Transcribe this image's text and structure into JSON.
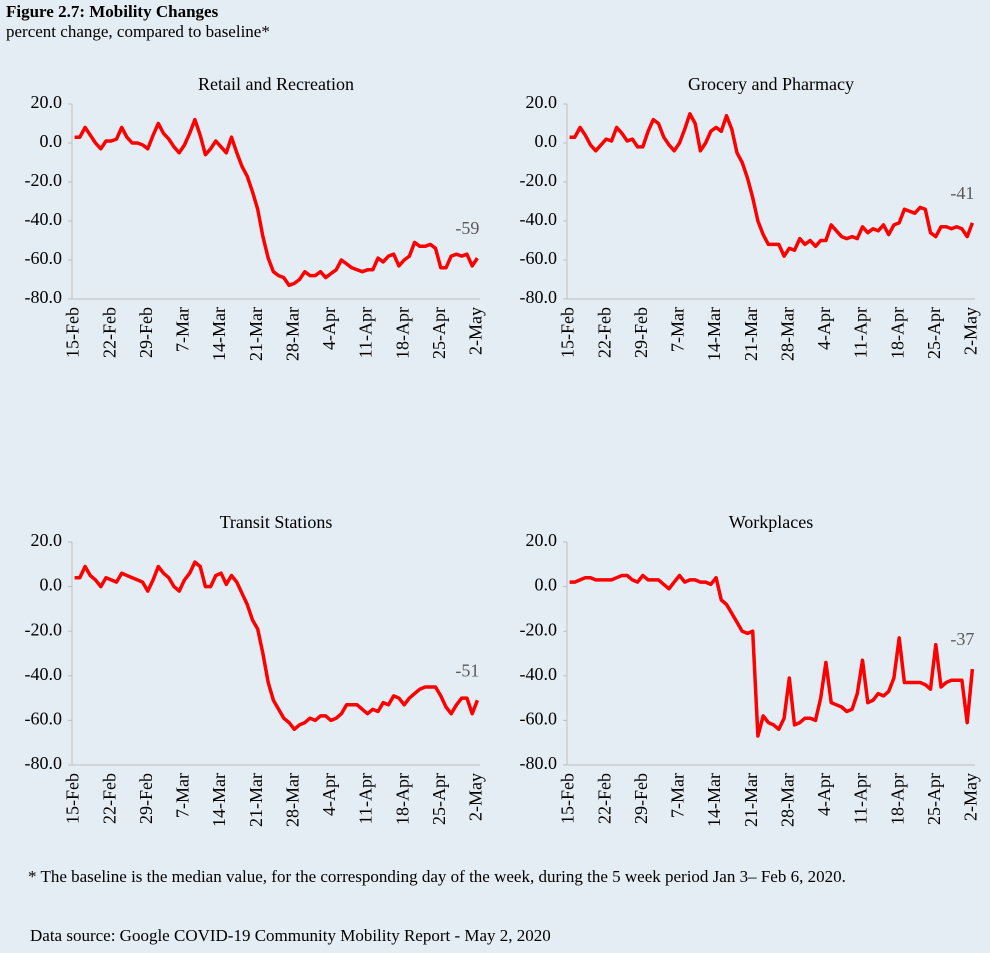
{
  "header": {
    "title": "Figure 2.7: Mobility Changes",
    "subtitle": "percent change, compared to baseline*"
  },
  "footer": {
    "note": "* The baseline is the median value, for the corresponding day of the week, during the 5 week period Jan 3– Feb 6, 2020.",
    "source": "Data source: Google COVID-19 Community Mobility Report - May 2, 2020"
  },
  "chart_data": [
    {
      "type": "line",
      "title": "Retail and Recreation",
      "color": "#ff0000",
      "last_value_label": true,
      "categories": [
        "15-Feb",
        null,
        null,
        null,
        null,
        null,
        null,
        "22-Feb",
        null,
        null,
        null,
        null,
        null,
        null,
        "29-Feb",
        null,
        null,
        null,
        null,
        null,
        null,
        "7-Mar",
        null,
        null,
        null,
        null,
        null,
        null,
        "14-Mar",
        null,
        null,
        null,
        null,
        null,
        null,
        "21-Mar",
        null,
        null,
        null,
        null,
        null,
        null,
        "28-Mar",
        null,
        null,
        null,
        null,
        null,
        null,
        "4-Apr",
        null,
        null,
        null,
        null,
        null,
        null,
        "11-Apr",
        null,
        null,
        null,
        null,
        null,
        null,
        "18-Apr",
        null,
        null,
        null,
        null,
        null,
        null,
        "25-Apr",
        null,
        null,
        null,
        null,
        null,
        null,
        "2-May"
      ],
      "values": [
        3,
        3,
        8,
        4,
        0,
        -3,
        1,
        1,
        2,
        8,
        3,
        0,
        0,
        -1,
        -3,
        4,
        10,
        5,
        2,
        -2,
        -5,
        -1,
        5,
        12,
        4,
        -6,
        -3,
        1,
        -2,
        -5,
        3,
        -5,
        -12,
        -17,
        -25,
        -34,
        -48,
        -59,
        -66,
        -68,
        -69,
        -73,
        -72,
        -70,
        -66,
        -68,
        -68,
        -66,
        -69,
        -67,
        -65,
        -60,
        -62,
        -64,
        -65,
        -66,
        -65,
        -65,
        -59,
        -61,
        -58,
        -57,
        -63,
        -60,
        -58,
        -51,
        -53,
        -53,
        -52,
        -54,
        -64,
        -64,
        -58,
        -57,
        -58,
        -57,
        -63,
        -59
      ],
      "ylim": [
        -80,
        20
      ],
      "yticks": [
        {
          "value": -80,
          "label": "-80.0"
        },
        {
          "value": -60,
          "label": "-60.0"
        },
        {
          "value": -40,
          "label": "-40.0"
        },
        {
          "value": -20,
          "label": "-20.0"
        },
        {
          "value": 0,
          "label": "0.0"
        },
        {
          "value": 20,
          "label": "20.0"
        }
      ]
    },
    {
      "type": "line",
      "title": "Grocery and Pharmacy",
      "color": "#ff0000",
      "last_value_label": true,
      "categories": [
        "15-Feb",
        null,
        null,
        null,
        null,
        null,
        null,
        "22-Feb",
        null,
        null,
        null,
        null,
        null,
        null,
        "29-Feb",
        null,
        null,
        null,
        null,
        null,
        null,
        "7-Mar",
        null,
        null,
        null,
        null,
        null,
        null,
        "14-Mar",
        null,
        null,
        null,
        null,
        null,
        null,
        "21-Mar",
        null,
        null,
        null,
        null,
        null,
        null,
        "28-Mar",
        null,
        null,
        null,
        null,
        null,
        null,
        "4-Apr",
        null,
        null,
        null,
        null,
        null,
        null,
        "11-Apr",
        null,
        null,
        null,
        null,
        null,
        null,
        "18-Apr",
        null,
        null,
        null,
        null,
        null,
        null,
        "25-Apr",
        null,
        null,
        null,
        null,
        null,
        null,
        "2-May"
      ],
      "values": [
        3,
        3,
        8,
        4,
        -1,
        -4,
        -1,
        2,
        1,
        8,
        5,
        1,
        2,
        -2,
        -2,
        6,
        12,
        10,
        3,
        -1,
        -4,
        0,
        7,
        15,
        10,
        -4,
        0,
        6,
        8,
        6,
        14,
        7,
        -5,
        -10,
        -18,
        -28,
        -40,
        -47,
        -52,
        -52,
        -52,
        -58,
        -54,
        -55,
        -49,
        -52,
        -50,
        -53,
        -50,
        -50,
        -42,
        -45,
        -48,
        -49,
        -48,
        -49,
        -43,
        -46,
        -44,
        -45,
        -42,
        -47,
        -42,
        -41,
        -34,
        -35,
        -36,
        -33,
        -34,
        -46,
        -48,
        -43,
        -43,
        -44,
        -43,
        -44,
        -48,
        -41
      ],
      "ylim": [
        -80,
        20
      ],
      "yticks": [
        {
          "value": -80,
          "label": "-80.0"
        },
        {
          "value": -60,
          "label": "-60.0"
        },
        {
          "value": -40,
          "label": "-40.0"
        },
        {
          "value": -20,
          "label": "-20.0"
        },
        {
          "value": 0,
          "label": "0.0"
        },
        {
          "value": 20,
          "label": "20.0"
        }
      ]
    },
    {
      "type": "line",
      "title": "Transit Stations",
      "color": "#ff0000",
      "last_value_label": true,
      "categories": [
        "15-Feb",
        null,
        null,
        null,
        null,
        null,
        null,
        "22-Feb",
        null,
        null,
        null,
        null,
        null,
        null,
        "29-Feb",
        null,
        null,
        null,
        null,
        null,
        null,
        "7-Mar",
        null,
        null,
        null,
        null,
        null,
        null,
        "14-Mar",
        null,
        null,
        null,
        null,
        null,
        null,
        "21-Mar",
        null,
        null,
        null,
        null,
        null,
        null,
        "28-Mar",
        null,
        null,
        null,
        null,
        null,
        null,
        "4-Apr",
        null,
        null,
        null,
        null,
        null,
        null,
        "11-Apr",
        null,
        null,
        null,
        null,
        null,
        null,
        "18-Apr",
        null,
        null,
        null,
        null,
        null,
        null,
        "25-Apr",
        null,
        null,
        null,
        null,
        null,
        null,
        "2-May"
      ],
      "values": [
        4,
        4,
        9,
        5,
        3,
        0,
        4,
        3,
        2,
        6,
        5,
        4,
        3,
        2,
        -2,
        3,
        9,
        6,
        4,
        0,
        -2,
        3,
        6,
        11,
        9,
        0,
        0,
        5,
        6,
        1,
        5,
        2,
        -3,
        -8,
        -15,
        -19,
        -30,
        -43,
        -51,
        -55,
        -59,
        -61,
        -64,
        -62,
        -61,
        -59,
        -60,
        -58,
        -58,
        -60,
        -59,
        -57,
        -53,
        -53,
        -53,
        -55,
        -57,
        -55,
        -56,
        -52,
        -53,
        -49,
        -50,
        -53,
        -50,
        -48,
        -46,
        -45,
        -45,
        -45,
        -49,
        -54,
        -57,
        -53,
        -50,
        -50,
        -57,
        -51
      ],
      "ylim": [
        -80,
        20
      ],
      "yticks": [
        {
          "value": -80,
          "label": "-80.0"
        },
        {
          "value": -60,
          "label": "-60.0"
        },
        {
          "value": -40,
          "label": "-40.0"
        },
        {
          "value": -20,
          "label": "-20.0"
        },
        {
          "value": 0,
          "label": "0.0"
        },
        {
          "value": 20,
          "label": "20.0"
        }
      ]
    },
    {
      "type": "line",
      "title": "Workplaces",
      "color": "#ff0000",
      "last_value_label": true,
      "categories": [
        "15-Feb",
        null,
        null,
        null,
        null,
        null,
        null,
        "22-Feb",
        null,
        null,
        null,
        null,
        null,
        null,
        "29-Feb",
        null,
        null,
        null,
        null,
        null,
        null,
        "7-Mar",
        null,
        null,
        null,
        null,
        null,
        null,
        "14-Mar",
        null,
        null,
        null,
        null,
        null,
        null,
        "21-Mar",
        null,
        null,
        null,
        null,
        null,
        null,
        "28-Mar",
        null,
        null,
        null,
        null,
        null,
        null,
        "4-Apr",
        null,
        null,
        null,
        null,
        null,
        null,
        "11-Apr",
        null,
        null,
        null,
        null,
        null,
        null,
        "18-Apr",
        null,
        null,
        null,
        null,
        null,
        null,
        "25-Apr",
        null,
        null,
        null,
        null,
        null,
        null,
        "2-May"
      ],
      "values": [
        2,
        2,
        3,
        4,
        4,
        3,
        3,
        3,
        3,
        4,
        5,
        5,
        3,
        2,
        5,
        3,
        3,
        3,
        1,
        -1,
        2,
        5,
        2,
        3,
        3,
        2,
        2,
        1,
        4,
        -6,
        -8,
        -12,
        -16,
        -20,
        -21,
        -20,
        -67,
        -58,
        -61,
        -62,
        -64,
        -59,
        -41,
        -62,
        -61,
        -59,
        -59,
        -60,
        -50,
        -34,
        -52,
        -53,
        -54,
        -56,
        -55,
        -48,
        -33,
        -52,
        -51,
        -48,
        -49,
        -47,
        -41,
        -23,
        -43,
        -43,
        -43,
        -43,
        -44,
        -46,
        -26,
        -45,
        -43,
        -42,
        -42,
        -42,
        -61,
        -37
      ],
      "ylim": [
        -80,
        20
      ],
      "yticks": [
        {
          "value": -80,
          "label": "-80.0"
        },
        {
          "value": -60,
          "label": "-60.0"
        },
        {
          "value": -40,
          "label": "-40.0"
        },
        {
          "value": -20,
          "label": "-20.0"
        },
        {
          "value": 0,
          "label": "0.0"
        },
        {
          "value": 20,
          "label": "20.0"
        }
      ]
    }
  ]
}
